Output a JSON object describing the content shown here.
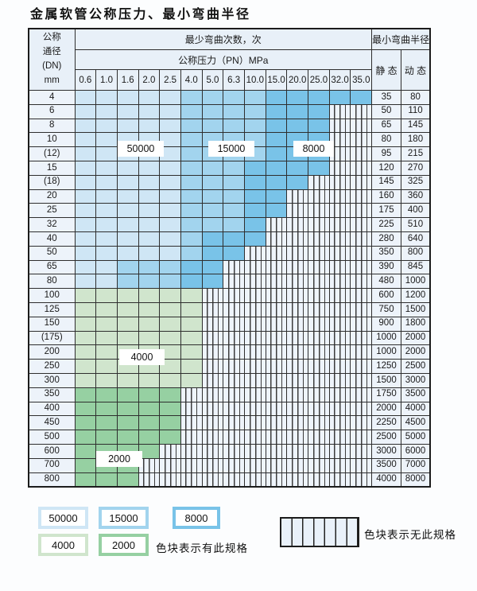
{
  "title": "金属软管公称压力、最小弯曲半径",
  "table": {
    "corner_lines": [
      "公称",
      "通径",
      "(DN)",
      "mm"
    ],
    "cycles_header": "最少弯曲次数，次",
    "pressure_header": "公称压力（PN）MPa",
    "radius_header": "最小弯曲半径",
    "static_header": "静 态",
    "dynamic_header": "动 态",
    "pressures": [
      "0.6",
      "1.0",
      "1.6",
      "2.0",
      "2.5",
      "4.0",
      "5.0",
      "6.3",
      "10.0",
      "15.0",
      "20.0",
      "25.0",
      "32.0",
      "35.0"
    ],
    "rows": [
      {
        "dn": "4",
        "seg": [
          [
            "b1",
            5
          ],
          [
            "b2",
            4
          ],
          [
            "b3",
            5
          ]
        ],
        "static": "35",
        "dynamic": "80"
      },
      {
        "dn": "6",
        "seg": [
          [
            "b1",
            5
          ],
          [
            "b2",
            4
          ],
          [
            "b3",
            3
          ],
          [
            "x",
            2
          ]
        ],
        "static": "50",
        "dynamic": "110"
      },
      {
        "dn": "8",
        "seg": [
          [
            "b1",
            5
          ],
          [
            "b2",
            4
          ],
          [
            "b3",
            3
          ],
          [
            "x",
            2
          ]
        ],
        "static": "65",
        "dynamic": "145"
      },
      {
        "dn": "10",
        "seg": [
          [
            "b1",
            5
          ],
          [
            "b2",
            4
          ],
          [
            "b3",
            3
          ],
          [
            "x",
            2
          ]
        ],
        "static": "80",
        "dynamic": "180"
      },
      {
        "dn": "(12)",
        "seg": [
          [
            "b1",
            5
          ],
          [
            "b2",
            4
          ],
          [
            "b3",
            3
          ],
          [
            "x",
            2
          ]
        ],
        "static": "95",
        "dynamic": "215"
      },
      {
        "dn": "15",
        "seg": [
          [
            "b1",
            5
          ],
          [
            "b2",
            3
          ],
          [
            "b3",
            4
          ],
          [
            "x",
            2
          ]
        ],
        "static": "120",
        "dynamic": "270"
      },
      {
        "dn": "(18)",
        "seg": [
          [
            "b1",
            5
          ],
          [
            "b2",
            3
          ],
          [
            "b3",
            3
          ],
          [
            "x",
            3
          ]
        ],
        "static": "145",
        "dynamic": "325"
      },
      {
        "dn": "20",
        "seg": [
          [
            "b1",
            5
          ],
          [
            "b2",
            3
          ],
          [
            "b3",
            2
          ],
          [
            "x",
            4
          ]
        ],
        "static": "160",
        "dynamic": "360"
      },
      {
        "dn": "25",
        "seg": [
          [
            "b1",
            5
          ],
          [
            "b2",
            3
          ],
          [
            "b3",
            2
          ],
          [
            "x",
            4
          ]
        ],
        "static": "175",
        "dynamic": "400"
      },
      {
        "dn": "32",
        "seg": [
          [
            "b1",
            5
          ],
          [
            "b2",
            3
          ],
          [
            "b3",
            1
          ],
          [
            "x",
            5
          ]
        ],
        "static": "225",
        "dynamic": "510"
      },
      {
        "dn": "40",
        "seg": [
          [
            "b1",
            5
          ],
          [
            "b2",
            1
          ],
          [
            "b3",
            3
          ],
          [
            "x",
            5
          ]
        ],
        "static": "280",
        "dynamic": "640"
      },
      {
        "dn": "50",
        "seg": [
          [
            "b1",
            5
          ],
          [
            "b2",
            1
          ],
          [
            "b3",
            2
          ],
          [
            "x",
            6
          ]
        ],
        "static": "350",
        "dynamic": "800"
      },
      {
        "dn": "65",
        "seg": [
          [
            "b1",
            2
          ],
          [
            "b2",
            3
          ],
          [
            "b3",
            2
          ],
          [
            "x",
            7
          ]
        ],
        "static": "390",
        "dynamic": "845"
      },
      {
        "dn": "80",
        "seg": [
          [
            "b1",
            2
          ],
          [
            "b2",
            3
          ],
          [
            "b3",
            2
          ],
          [
            "x",
            7
          ]
        ],
        "static": "480",
        "dynamic": "1000"
      },
      {
        "dn": "100",
        "seg": [
          [
            "g1",
            6
          ],
          [
            "x",
            8
          ]
        ],
        "static": "600",
        "dynamic": "1200"
      },
      {
        "dn": "125",
        "seg": [
          [
            "g1",
            6
          ],
          [
            "x",
            8
          ]
        ],
        "static": "750",
        "dynamic": "1500"
      },
      {
        "dn": "150",
        "seg": [
          [
            "g1",
            6
          ],
          [
            "x",
            8
          ]
        ],
        "static": "900",
        "dynamic": "1800"
      },
      {
        "dn": "(175)",
        "seg": [
          [
            "g1",
            6
          ],
          [
            "x",
            8
          ]
        ],
        "static": "1000",
        "dynamic": "2000"
      },
      {
        "dn": "200",
        "seg": [
          [
            "g1",
            6
          ],
          [
            "x",
            8
          ]
        ],
        "static": "1000",
        "dynamic": "2000"
      },
      {
        "dn": "250",
        "seg": [
          [
            "g1",
            6
          ],
          [
            "x",
            8
          ]
        ],
        "static": "1250",
        "dynamic": "2500"
      },
      {
        "dn": "300",
        "seg": [
          [
            "g1",
            6
          ],
          [
            "x",
            8
          ]
        ],
        "static": "1500",
        "dynamic": "3000"
      },
      {
        "dn": "350",
        "seg": [
          [
            "g2",
            5
          ],
          [
            "x",
            9
          ]
        ],
        "static": "1750",
        "dynamic": "3500"
      },
      {
        "dn": "400",
        "seg": [
          [
            "g2",
            5
          ],
          [
            "x",
            9
          ]
        ],
        "static": "2000",
        "dynamic": "4000"
      },
      {
        "dn": "450",
        "seg": [
          [
            "g2",
            5
          ],
          [
            "x",
            9
          ]
        ],
        "static": "2250",
        "dynamic": "4500"
      },
      {
        "dn": "500",
        "seg": [
          [
            "g2",
            5
          ],
          [
            "x",
            9
          ]
        ],
        "static": "2500",
        "dynamic": "5000"
      },
      {
        "dn": "600",
        "seg": [
          [
            "g2",
            4
          ],
          [
            "x",
            10
          ]
        ],
        "static": "3000",
        "dynamic": "6000"
      },
      {
        "dn": "700",
        "seg": [
          [
            "g2",
            3
          ],
          [
            "x",
            11
          ]
        ],
        "static": "3500",
        "dynamic": "7000"
      },
      {
        "dn": "800",
        "seg": [
          [
            "g2",
            3
          ],
          [
            "x",
            11
          ]
        ],
        "static": "4000",
        "dynamic": "8000"
      }
    ]
  },
  "cell_colors": {
    "b1": "#cfe6f5",
    "b2": "#a2d4ee",
    "b3": "#79c3e8",
    "g1": "#d0e5cd",
    "g2": "#96d0a2"
  },
  "region_labels": [
    {
      "text": "50000"
    },
    {
      "text": "15000"
    },
    {
      "text": "8000"
    },
    {
      "text": "4000"
    },
    {
      "text": "2000"
    }
  ],
  "legend": {
    "items": [
      {
        "label": "50000",
        "key": "b1"
      },
      {
        "label": "15000",
        "key": "b2"
      },
      {
        "label": "8000",
        "key": "b3"
      },
      {
        "label": "4000",
        "key": "g1"
      },
      {
        "label": "2000",
        "key": "g2"
      }
    ],
    "has_spec_text": "色块表示有此规格",
    "no_spec_text": "色块表示无此规格"
  }
}
